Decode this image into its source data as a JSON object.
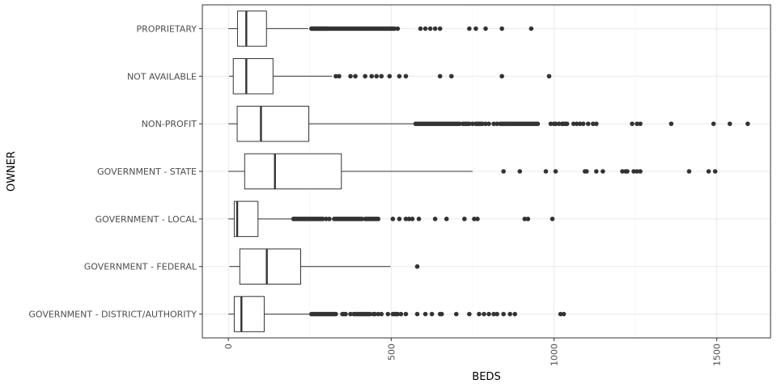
{
  "chart_data": {
    "type": "boxplot",
    "orientation": "horizontal",
    "xlabel": "BEDS",
    "ylabel": "OWNER",
    "xlim": [
      -80,
      1665
    ],
    "xticks": [
      0,
      500,
      1000,
      1500
    ],
    "grid": true,
    "legend": "none",
    "categories": [
      "GOVERNMENT - DISTRICT/AUTHORITY",
      "GOVERNMENT - FEDERAL",
      "GOVERNMENT - LOCAL",
      "GOVERNMENT - STATE",
      "NON-PROFIT",
      "NOT AVAILABLE",
      "PROPRIETARY"
    ],
    "series": [
      {
        "category": "GOVERNMENT - DISTRICT/AUTHORITY",
        "whisker_low": 0,
        "q1": 18,
        "median": 40,
        "q3": 110,
        "whisker_high": 248,
        "outliers": [
          255,
          260,
          265,
          270,
          275,
          280,
          285,
          290,
          295,
          300,
          305,
          310,
          315,
          320,
          325,
          330,
          350,
          355,
          360,
          375,
          385,
          390,
          395,
          400,
          405,
          410,
          415,
          420,
          425,
          430,
          435,
          445,
          450,
          460,
          470,
          490,
          505,
          510,
          515,
          520,
          530,
          545,
          580,
          605,
          625,
          650,
          655,
          700,
          740,
          770,
          785,
          800,
          815,
          825,
          845,
          865,
          880,
          1020,
          1030
        ]
      },
      {
        "category": "GOVERNMENT - FEDERAL",
        "whisker_low": 3,
        "q1": 35,
        "median": 118,
        "q3": 222,
        "whisker_high": 498,
        "outliers": [
          580
        ]
      },
      {
        "category": "GOVERNMENT - LOCAL",
        "whisker_low": 0,
        "q1": 18,
        "median": 27,
        "q3": 91,
        "whisker_high": 195,
        "outliers": [
          200,
          205,
          210,
          215,
          220,
          225,
          230,
          235,
          240,
          245,
          250,
          255,
          260,
          265,
          270,
          275,
          280,
          285,
          290,
          300,
          310,
          325,
          330,
          335,
          340,
          345,
          350,
          355,
          360,
          365,
          370,
          375,
          380,
          385,
          390,
          395,
          400,
          405,
          410,
          420,
          425,
          430,
          435,
          440,
          445,
          450,
          455,
          460,
          505,
          525,
          545,
          555,
          565,
          585,
          635,
          670,
          725,
          755,
          765,
          910,
          920,
          995
        ]
      },
      {
        "category": "GOVERNMENT - STATE",
        "whisker_low": 0,
        "q1": 50,
        "median": 143,
        "q3": 347,
        "whisker_high": 750,
        "outliers": [
          845,
          895,
          975,
          1005,
          1095,
          1100,
          1130,
          1150,
          1210,
          1220,
          1225,
          1245,
          1255,
          1265,
          1415,
          1475,
          1495
        ]
      },
      {
        "category": "NON-PROFIT",
        "whisker_low": 0,
        "q1": 27,
        "median": 100,
        "q3": 247,
        "whisker_high": 570,
        "outliers": [
          575,
          580,
          585,
          590,
          595,
          600,
          605,
          610,
          615,
          620,
          625,
          630,
          635,
          640,
          645,
          650,
          655,
          660,
          665,
          670,
          675,
          680,
          685,
          690,
          695,
          700,
          705,
          710,
          720,
          725,
          730,
          735,
          740,
          750,
          760,
          765,
          770,
          775,
          780,
          790,
          800,
          815,
          825,
          835,
          840,
          845,
          850,
          855,
          860,
          865,
          870,
          875,
          880,
          885,
          890,
          895,
          900,
          905,
          910,
          915,
          920,
          925,
          930,
          935,
          940,
          945,
          950,
          990,
          1000,
          1005,
          1015,
          1025,
          1030,
          1035,
          1040,
          1060,
          1070,
          1080,
          1090,
          1105,
          1120,
          1130,
          1240,
          1255,
          1265,
          1360,
          1490,
          1540,
          1595
        ]
      },
      {
        "category": "NOT AVAILABLE",
        "whisker_low": 2,
        "q1": 15,
        "median": 55,
        "q3": 137,
        "whisker_high": 318,
        "outliers": [
          330,
          340,
          375,
          390,
          420,
          440,
          455,
          470,
          495,
          525,
          545,
          650,
          685,
          840,
          985
        ]
      },
      {
        "category": "PROPRIETARY",
        "whisker_low": 0,
        "q1": 28,
        "median": 55,
        "q3": 117,
        "whisker_high": 245,
        "outliers": [
          255,
          258,
          262,
          265,
          268,
          272,
          275,
          278,
          282,
          285,
          288,
          292,
          295,
          298,
          302,
          305,
          310,
          315,
          320,
          325,
          330,
          335,
          340,
          345,
          350,
          355,
          360,
          365,
          370,
          375,
          380,
          385,
          390,
          395,
          400,
          405,
          410,
          415,
          420,
          425,
          430,
          435,
          440,
          445,
          450,
          455,
          460,
          465,
          470,
          475,
          480,
          485,
          490,
          495,
          500,
          505,
          510,
          520,
          590,
          605,
          620,
          635,
          650,
          740,
          760,
          790,
          840,
          930
        ]
      }
    ]
  }
}
